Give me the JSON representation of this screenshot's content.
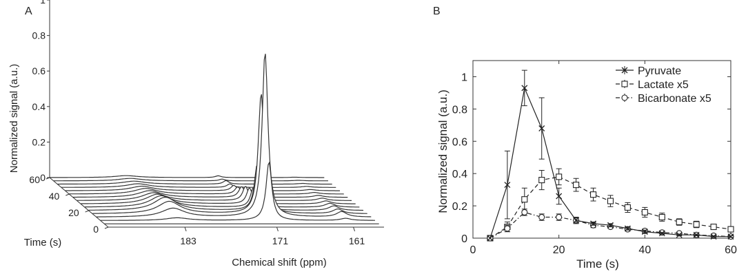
{
  "panels": {
    "a_label": "A",
    "b_label": "B"
  },
  "chart_data": [
    {
      "type": "line",
      "panel": "A",
      "style": "3d-waterfall",
      "xlabel": "Chemical shift (ppm)",
      "ylabel": "Normalized signal (a.u.)",
      "zlabel": "Time (s)",
      "x_ticks": [
        "183",
        "171",
        "161"
      ],
      "y_ticks": [
        "0",
        "0.2",
        "0.4",
        "0.6",
        "0.8",
        "1"
      ],
      "z_ticks": [
        "0",
        "20",
        "40",
        "60"
      ],
      "xlim": [
        157,
        193
      ],
      "ylim": [
        0,
        1
      ],
      "zlim": [
        0,
        60
      ],
      "peaks": [
        {
          "name": "pyruvate",
          "ppm": 171
        },
        {
          "name": "lactate",
          "ppm": 183
        },
        {
          "name": "bicarbonate",
          "ppm": 161
        }
      ],
      "spectra_times": [
        4,
        8,
        12,
        16,
        20,
        24,
        28,
        32,
        36,
        40,
        44,
        48,
        52,
        56,
        60
      ],
      "pyruvate_amplitude": [
        0.0,
        0.33,
        0.93,
        0.68,
        0.26,
        0.11,
        0.09,
        0.08,
        0.06,
        0.04,
        0.03,
        0.02,
        0.02,
        0.01,
        0.01
      ],
      "lactate_amplitude": [
        0.0,
        0.015,
        0.05,
        0.07,
        0.075,
        0.065,
        0.055,
        0.045,
        0.038,
        0.032,
        0.026,
        0.021,
        0.017,
        0.014,
        0.011
      ],
      "bicarbonate_amplitude": [
        0.0,
        0.012,
        0.03,
        0.026,
        0.026,
        0.022,
        0.017,
        0.014,
        0.011,
        0.009,
        0.007,
        0.006,
        0.004,
        0.003,
        0.002
      ]
    },
    {
      "type": "line",
      "panel": "B",
      "xlabel": "Time (s)",
      "ylabel": "Normalized signal (a.u.)",
      "xlim": [
        0,
        60
      ],
      "ylim": [
        0,
        1.1
      ],
      "x_ticks": [
        "0",
        "20",
        "40",
        "60"
      ],
      "y_ticks": [
        "0",
        "0.2",
        "0.4",
        "0.6",
        "0.8",
        "1"
      ],
      "x": [
        4,
        8,
        12,
        16,
        20,
        24,
        28,
        32,
        36,
        40,
        44,
        48,
        52,
        56,
        60
      ],
      "legend_position": "top-right",
      "grid": false,
      "series": [
        {
          "name": "Pyruvate",
          "marker": "x",
          "dash": "solid",
          "values": [
            0.0,
            0.33,
            0.93,
            0.68,
            0.26,
            0.11,
            0.09,
            0.08,
            0.06,
            0.04,
            0.03,
            0.02,
            0.02,
            0.01,
            0.01
          ],
          "errors": [
            0.0,
            0.21,
            0.11,
            0.19,
            0.05,
            0.02,
            0.01,
            0.01,
            0.01,
            0.01,
            0.005,
            0.005,
            0.005,
            0.005,
            0.005
          ]
        },
        {
          "name": "Lactate x5",
          "marker": "square",
          "dash": "dashed",
          "values": [
            0.0,
            0.07,
            0.24,
            0.36,
            0.38,
            0.33,
            0.27,
            0.23,
            0.19,
            0.16,
            0.13,
            0.1,
            0.085,
            0.07,
            0.055
          ],
          "errors": [
            0.0,
            0.03,
            0.07,
            0.06,
            0.05,
            0.04,
            0.04,
            0.035,
            0.03,
            0.03,
            0.025,
            0.02,
            0.02,
            0.015,
            0.015
          ]
        },
        {
          "name": "Bicarbonate x5",
          "marker": "circle",
          "dash": "dash-dot",
          "values": [
            0.0,
            0.06,
            0.16,
            0.13,
            0.13,
            0.11,
            0.08,
            0.07,
            0.055,
            0.045,
            0.035,
            0.03,
            0.02,
            0.015,
            0.01
          ],
          "errors": [
            0.0,
            0.02,
            0.02,
            0.02,
            0.02,
            0.015,
            0.015,
            0.01,
            0.01,
            0.01,
            0.008,
            0.006,
            0.005,
            0.004,
            0.003
          ]
        }
      ]
    }
  ]
}
